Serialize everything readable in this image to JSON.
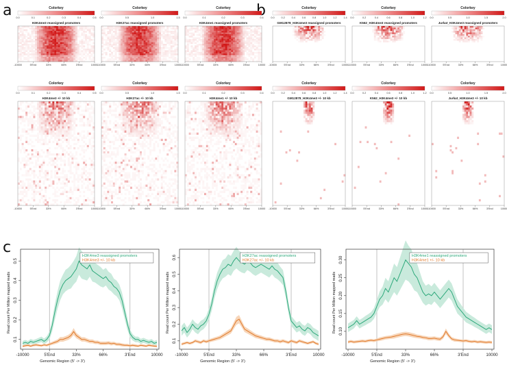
{
  "panel_labels": {
    "a": "a",
    "b": "b",
    "c": "c"
  },
  "colorkey_title": "Colorkey",
  "heatmap_xticks": [
    "-10000",
    "5'End",
    "33%",
    "66%",
    "3'End",
    "10000"
  ],
  "colors": {
    "green": "#2ca87a",
    "green_band": "#bfe6d6",
    "orange": "#e0792a",
    "orange_band": "#f6cfae",
    "heat_high": "#d21818"
  },
  "heatmaps": [
    {
      "panel": "a",
      "row": 0,
      "col": 0,
      "title": "H3K4me3 reassigned promoters",
      "key_ticks": [
        "0.0",
        "0.1",
        "0.2",
        "0.3",
        "0.4",
        "0.5"
      ],
      "pattern": "promoter_dense"
    },
    {
      "panel": "a",
      "row": 0,
      "col": 1,
      "title": "H3K27ac reassigned promoters",
      "key_ticks": [
        "0.0",
        "0.5",
        "1.0",
        "1.5"
      ],
      "pattern": "promoter_dense"
    },
    {
      "panel": "a",
      "row": 0,
      "col": 2,
      "title": "H3K4me1 reassigned promoters",
      "key_ticks": [
        "0.0",
        "0.1",
        "0.2",
        "0.3",
        "0.4"
      ],
      "pattern": "promoter_dense"
    },
    {
      "panel": "a",
      "row": 1,
      "col": 0,
      "title": "H3K4me3 +/- 10 kb",
      "key_ticks": [
        "0.0",
        "0.1",
        "0.2",
        "0.3",
        "0.4",
        "0.5"
      ],
      "pattern": "flank_noise"
    },
    {
      "panel": "a",
      "row": 1,
      "col": 1,
      "title": "H3K27ac +/- 10 kb",
      "key_ticks": [
        "0.0",
        "0.5",
        "1.0",
        "1.5"
      ],
      "pattern": "flank_noise"
    },
    {
      "panel": "a",
      "row": 1,
      "col": 2,
      "title": "H3K4me1 +/- 10 kb",
      "key_ticks": [
        "0.0",
        "0.1",
        "0.2",
        "0.3",
        "0.4"
      ],
      "pattern": "flank_noise"
    },
    {
      "panel": "b",
      "row": 0,
      "col": 0,
      "title": "GM12878_H3K4me3 reassigned promoters",
      "key_ticks": [
        "0.0",
        "0.2",
        "0.4",
        "0.6",
        "0.8",
        "1.0",
        "1.2",
        "1.4"
      ],
      "pattern": "sparse_top"
    },
    {
      "panel": "b",
      "row": 0,
      "col": 1,
      "title": "K562_H3K4me3 reassigned promoters",
      "key_ticks": [
        "0.0",
        "0.2",
        "0.4",
        "0.6",
        "0.8",
        "1.0",
        "1.2"
      ],
      "pattern": "sparse_top"
    },
    {
      "panel": "b",
      "row": 0,
      "col": 2,
      "title": "Jurkat_H3K4me3 reassigned promoters",
      "key_ticks": [
        "0.0",
        "0.5",
        "1.0",
        "1.5",
        "2.0"
      ],
      "pattern": "sparse_top"
    },
    {
      "panel": "b",
      "row": 1,
      "col": 0,
      "title": "GM12878_H3K4me3 +/- 10 kb",
      "key_ticks": [
        "0.0",
        "0.2",
        "0.4",
        "0.6",
        "0.8",
        "1.0",
        "1.2",
        "1.4"
      ],
      "pattern": "sparse_center"
    },
    {
      "panel": "b",
      "row": 1,
      "col": 1,
      "title": "K562_H3K4me3 +/- 10 kb",
      "key_ticks": [
        "0.0",
        "0.2",
        "0.4",
        "0.6",
        "0.8",
        "1.0",
        "1.2"
      ],
      "pattern": "sparse_center"
    },
    {
      "panel": "b",
      "row": 1,
      "col": 2,
      "title": "Jurkat_H3K4me3 +/- 10 kb",
      "key_ticks": [
        "0.0",
        "0.5",
        "1.0",
        "1.5",
        "2.0"
      ],
      "pattern": "sparse_center"
    }
  ],
  "chart_data": [
    {
      "type": "line",
      "title": "",
      "xlabel": "Genomic Region (5' -> 3')",
      "ylabel": "Read count Per Million mapped reads",
      "x_ticks": [
        "-10000",
        "5'End",
        "33%",
        "66%",
        "3'End",
        "10000"
      ],
      "ylim": [
        0.05,
        0.56
      ],
      "y_ticks": [
        0.1,
        0.2,
        0.3,
        0.4,
        0.5
      ],
      "y_tick_labels": [
        "0.1",
        "0.2",
        "0.3",
        "0.4",
        "0.5"
      ],
      "x": [
        0,
        2,
        4,
        6,
        8,
        10,
        12,
        14,
        16,
        18,
        20,
        22,
        24,
        26,
        28,
        30,
        32,
        34,
        36,
        38,
        40,
        42,
        44,
        46,
        48,
        50,
        52,
        54,
        56,
        58,
        60,
        62,
        64,
        66,
        68,
        70,
        72,
        74,
        76,
        78,
        80,
        82,
        84,
        86,
        88,
        90,
        92,
        94,
        96,
        98,
        100
      ],
      "series": [
        {
          "name": "H3K4me3 reassigned promoters",
          "values": [
            0.08,
            0.085,
            0.08,
            0.09,
            0.085,
            0.09,
            0.095,
            0.1,
            0.09,
            0.1,
            0.12,
            0.17,
            0.24,
            0.3,
            0.35,
            0.38,
            0.4,
            0.41,
            0.42,
            0.44,
            0.46,
            0.5,
            0.48,
            0.47,
            0.46,
            0.48,
            0.45,
            0.44,
            0.43,
            0.42,
            0.41,
            0.42,
            0.4,
            0.39,
            0.37,
            0.36,
            0.34,
            0.3,
            0.24,
            0.18,
            0.13,
            0.11,
            0.1,
            0.1,
            0.09,
            0.095,
            0.09,
            0.085,
            0.09,
            0.08,
            0.085
          ],
          "band": [
            0.012,
            0.012,
            0.012,
            0.012,
            0.012,
            0.012,
            0.013,
            0.014,
            0.014,
            0.016,
            0.02,
            0.03,
            0.04,
            0.045,
            0.05,
            0.05,
            0.055,
            0.055,
            0.06,
            0.06,
            0.065,
            0.07,
            0.07,
            0.065,
            0.06,
            0.06,
            0.055,
            0.05,
            0.05,
            0.05,
            0.045,
            0.045,
            0.045,
            0.045,
            0.04,
            0.04,
            0.04,
            0.04,
            0.035,
            0.03,
            0.02,
            0.016,
            0.014,
            0.014,
            0.013,
            0.013,
            0.012,
            0.012,
            0.012,
            0.012,
            0.012
          ]
        },
        {
          "name": "H3K4me3 +/- 10 kb",
          "values": [
            0.065,
            0.068,
            0.07,
            0.066,
            0.07,
            0.072,
            0.07,
            0.068,
            0.072,
            0.07,
            0.075,
            0.08,
            0.085,
            0.09,
            0.1,
            0.1,
            0.105,
            0.11,
            0.12,
            0.14,
            0.12,
            0.11,
            0.1,
            0.1,
            0.095,
            0.09,
            0.09,
            0.085,
            0.085,
            0.08,
            0.08,
            0.08,
            0.082,
            0.078,
            0.08,
            0.075,
            0.075,
            0.072,
            0.07,
            0.07,
            0.068,
            0.07,
            0.068,
            0.066,
            0.07,
            0.068,
            0.066,
            0.07,
            0.068,
            0.066,
            0.065
          ],
          "band": [
            0.006,
            0.006,
            0.006,
            0.006,
            0.006,
            0.006,
            0.006,
            0.006,
            0.006,
            0.006,
            0.007,
            0.008,
            0.009,
            0.01,
            0.012,
            0.012,
            0.012,
            0.013,
            0.014,
            0.018,
            0.014,
            0.012,
            0.011,
            0.011,
            0.01,
            0.01,
            0.01,
            0.009,
            0.009,
            0.009,
            0.009,
            0.009,
            0.009,
            0.009,
            0.008,
            0.008,
            0.008,
            0.008,
            0.007,
            0.007,
            0.007,
            0.007,
            0.007,
            0.006,
            0.006,
            0.006,
            0.006,
            0.006,
            0.006,
            0.006,
            0.006
          ]
        }
      ]
    },
    {
      "type": "line",
      "title": "",
      "xlabel": "Genomic Region (5' -> 3')",
      "ylabel": "Read count Per Million mapped reads",
      "x_ticks": [
        "-10000",
        "5'End",
        "33%",
        "66%",
        "3'End",
        "10000"
      ],
      "ylim": [
        0.05,
        0.65
      ],
      "y_ticks": [
        0.1,
        0.2,
        0.3,
        0.4,
        0.5,
        0.6
      ],
      "y_tick_labels": [
        "0.1",
        "0.2",
        "0.3",
        "0.4",
        "0.5",
        "0.6"
      ],
      "x": [
        0,
        2,
        4,
        6,
        8,
        10,
        12,
        14,
        16,
        18,
        20,
        22,
        24,
        26,
        28,
        30,
        32,
        34,
        36,
        38,
        40,
        42,
        44,
        46,
        48,
        50,
        52,
        54,
        56,
        58,
        60,
        62,
        64,
        66,
        68,
        70,
        72,
        74,
        76,
        78,
        80,
        82,
        84,
        86,
        88,
        90,
        92,
        94,
        96,
        98,
        100
      ],
      "series": [
        {
          "name": "H3K27ac reassigned promoters",
          "values": [
            0.16,
            0.18,
            0.15,
            0.17,
            0.2,
            0.18,
            0.17,
            0.19,
            0.2,
            0.22,
            0.26,
            0.32,
            0.4,
            0.46,
            0.5,
            0.53,
            0.54,
            0.56,
            0.55,
            0.58,
            0.6,
            0.58,
            0.57,
            0.56,
            0.58,
            0.57,
            0.55,
            0.54,
            0.55,
            0.56,
            0.55,
            0.54,
            0.53,
            0.55,
            0.53,
            0.52,
            0.5,
            0.48,
            0.4,
            0.3,
            0.22,
            0.2,
            0.18,
            0.19,
            0.17,
            0.16,
            0.18,
            0.17,
            0.15,
            0.14,
            0.13
          ],
          "band": [
            0.03,
            0.03,
            0.03,
            0.03,
            0.03,
            0.03,
            0.03,
            0.03,
            0.03,
            0.03,
            0.035,
            0.04,
            0.045,
            0.05,
            0.05,
            0.055,
            0.055,
            0.06,
            0.06,
            0.06,
            0.065,
            0.06,
            0.06,
            0.055,
            0.055,
            0.055,
            0.05,
            0.05,
            0.05,
            0.05,
            0.05,
            0.05,
            0.05,
            0.05,
            0.05,
            0.05,
            0.045,
            0.045,
            0.04,
            0.035,
            0.03,
            0.03,
            0.03,
            0.03,
            0.03,
            0.03,
            0.03,
            0.03,
            0.03,
            0.03,
            0.03
          ]
        },
        {
          "name": "H3K27ac +/- 10 kb",
          "values": [
            0.08,
            0.085,
            0.09,
            0.085,
            0.09,
            0.1,
            0.095,
            0.09,
            0.1,
            0.095,
            0.1,
            0.105,
            0.11,
            0.115,
            0.12,
            0.13,
            0.14,
            0.15,
            0.16,
            0.19,
            0.22,
            0.23,
            0.2,
            0.17,
            0.16,
            0.15,
            0.14,
            0.13,
            0.125,
            0.12,
            0.115,
            0.11,
            0.11,
            0.105,
            0.1,
            0.1,
            0.095,
            0.1,
            0.095,
            0.09,
            0.1,
            0.095,
            0.09,
            0.1,
            0.095,
            0.09,
            0.085,
            0.09,
            0.095,
            0.085,
            0.08
          ],
          "band": [
            0.008,
            0.008,
            0.008,
            0.008,
            0.008,
            0.009,
            0.009,
            0.009,
            0.009,
            0.009,
            0.01,
            0.01,
            0.011,
            0.011,
            0.012,
            0.013,
            0.014,
            0.015,
            0.016,
            0.02,
            0.024,
            0.025,
            0.02,
            0.017,
            0.016,
            0.015,
            0.014,
            0.013,
            0.012,
            0.012,
            0.011,
            0.011,
            0.011,
            0.01,
            0.01,
            0.01,
            0.01,
            0.01,
            0.009,
            0.009,
            0.009,
            0.009,
            0.009,
            0.009,
            0.009,
            0.008,
            0.008,
            0.008,
            0.008,
            0.008,
            0.008
          ]
        }
      ]
    },
    {
      "type": "line",
      "title": "",
      "xlabel": "Genomic Region (5' -> 3')",
      "ylabel": "Read count Per Million mapped reads",
      "x_ticks": [
        "-10000",
        "5'End",
        "33%",
        "66%",
        "3'End",
        "10000"
      ],
      "ylim": [
        0.05,
        0.33
      ],
      "y_ticks": [
        0.1,
        0.15,
        0.2,
        0.25,
        0.3
      ],
      "y_tick_labels": [
        "0.10",
        "0.15",
        "0.20",
        "0.25",
        "0.30"
      ],
      "x": [
        0,
        2,
        4,
        6,
        8,
        10,
        12,
        14,
        16,
        18,
        20,
        22,
        24,
        26,
        28,
        30,
        32,
        34,
        36,
        38,
        40,
        42,
        44,
        46,
        48,
        50,
        52,
        54,
        56,
        58,
        60,
        62,
        64,
        66,
        68,
        70,
        72,
        74,
        76,
        78,
        80,
        82,
        84,
        86,
        88,
        90,
        92,
        94,
        96,
        98,
        100
      ],
      "series": [
        {
          "name": "H3K4me1 reassigned promoters",
          "values": [
            0.11,
            0.115,
            0.12,
            0.13,
            0.12,
            0.125,
            0.13,
            0.135,
            0.14,
            0.15,
            0.17,
            0.19,
            0.2,
            0.22,
            0.21,
            0.23,
            0.25,
            0.24,
            0.26,
            0.28,
            0.3,
            0.29,
            0.28,
            0.26,
            0.25,
            0.23,
            0.21,
            0.2,
            0.205,
            0.2,
            0.21,
            0.2,
            0.19,
            0.2,
            0.21,
            0.22,
            0.21,
            0.19,
            0.17,
            0.16,
            0.15,
            0.14,
            0.135,
            0.13,
            0.125,
            0.12,
            0.115,
            0.11,
            0.105,
            0.11,
            0.105
          ],
          "band": [
            0.012,
            0.012,
            0.012,
            0.012,
            0.012,
            0.012,
            0.013,
            0.013,
            0.014,
            0.015,
            0.018,
            0.022,
            0.025,
            0.03,
            0.03,
            0.035,
            0.04,
            0.04,
            0.045,
            0.05,
            0.055,
            0.05,
            0.05,
            0.045,
            0.04,
            0.035,
            0.03,
            0.028,
            0.028,
            0.026,
            0.026,
            0.025,
            0.025,
            0.025,
            0.025,
            0.025,
            0.024,
            0.022,
            0.02,
            0.018,
            0.016,
            0.015,
            0.014,
            0.013,
            0.013,
            0.012,
            0.012,
            0.012,
            0.012,
            0.012,
            0.012
          ]
        },
        {
          "name": "H3K4me1 +/- 10 kb",
          "values": [
            0.07,
            0.072,
            0.07,
            0.071,
            0.072,
            0.073,
            0.072,
            0.074,
            0.075,
            0.074,
            0.076,
            0.078,
            0.08,
            0.082,
            0.083,
            0.084,
            0.086,
            0.088,
            0.09,
            0.092,
            0.093,
            0.092,
            0.09,
            0.088,
            0.086,
            0.085,
            0.083,
            0.082,
            0.08,
            0.08,
            0.081,
            0.079,
            0.078,
            0.085,
            0.1,
            0.088,
            0.079,
            0.076,
            0.075,
            0.074,
            0.073,
            0.074,
            0.072,
            0.071,
            0.072,
            0.07,
            0.071,
            0.07,
            0.069,
            0.07,
            0.069
          ],
          "band": [
            0.004,
            0.004,
            0.004,
            0.004,
            0.004,
            0.004,
            0.004,
            0.004,
            0.004,
            0.004,
            0.004,
            0.005,
            0.005,
            0.005,
            0.005,
            0.005,
            0.006,
            0.006,
            0.006,
            0.006,
            0.006,
            0.006,
            0.006,
            0.006,
            0.005,
            0.005,
            0.005,
            0.005,
            0.005,
            0.005,
            0.005,
            0.005,
            0.005,
            0.006,
            0.008,
            0.006,
            0.005,
            0.005,
            0.004,
            0.004,
            0.004,
            0.004,
            0.004,
            0.004,
            0.004,
            0.004,
            0.004,
            0.004,
            0.004,
            0.004,
            0.004
          ]
        }
      ]
    }
  ]
}
